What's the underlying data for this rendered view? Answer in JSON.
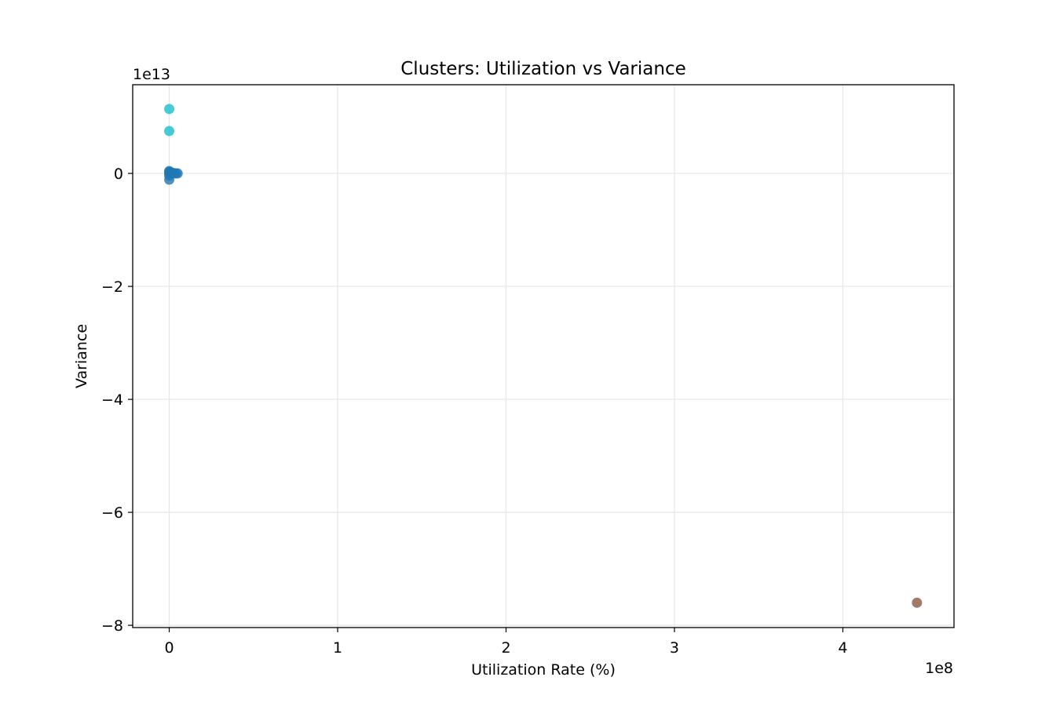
{
  "chart_data": {
    "type": "scatter",
    "title": "Clusters: Utilization vs Variance",
    "xlabel": "Utilization Rate (%)",
    "ylabel": "Variance",
    "x_offset_label": "1e8",
    "y_offset_label": "1e13",
    "xlim": [
      -21700000,
      466000000
    ],
    "ylim": [
      -80400000000000,
      15700000000000
    ],
    "xticks": [
      0,
      100000000,
      200000000,
      300000000,
      400000000
    ],
    "xtick_labels": [
      "0",
      "1",
      "2",
      "3",
      "4"
    ],
    "yticks": [
      0,
      -20000000000000,
      -40000000000000,
      -60000000000000,
      -80000000000000
    ],
    "ytick_labels": [
      "0",
      "−2",
      "−4",
      "−6",
      "−8"
    ],
    "grid": true,
    "legend": "none",
    "series": [
      {
        "color": "#1f77b4",
        "points": [
          {
            "x": 0,
            "y": 0
          },
          {
            "x": 0,
            "y": 400000000000
          },
          {
            "x": 0,
            "y": 300000000000
          },
          {
            "x": 0,
            "y": -400000000000
          },
          {
            "x": 0,
            "y": -1100000000000
          },
          {
            "x": 500000,
            "y": 200000000000
          },
          {
            "x": 1000000,
            "y": 100000000000
          },
          {
            "x": 2000000,
            "y": 100000000000
          },
          {
            "x": 3000000,
            "y": 0
          },
          {
            "x": 4000000,
            "y": 0
          },
          {
            "x": 5000000,
            "y": 0
          }
        ]
      },
      {
        "color": "#17becf",
        "points": [
          {
            "x": 0,
            "y": 11400000000000
          },
          {
            "x": 0,
            "y": 7500000000000
          }
        ]
      },
      {
        "color": "#8c564b",
        "points": [
          {
            "x": 444000000,
            "y": -76000000000000
          }
        ]
      }
    ]
  }
}
